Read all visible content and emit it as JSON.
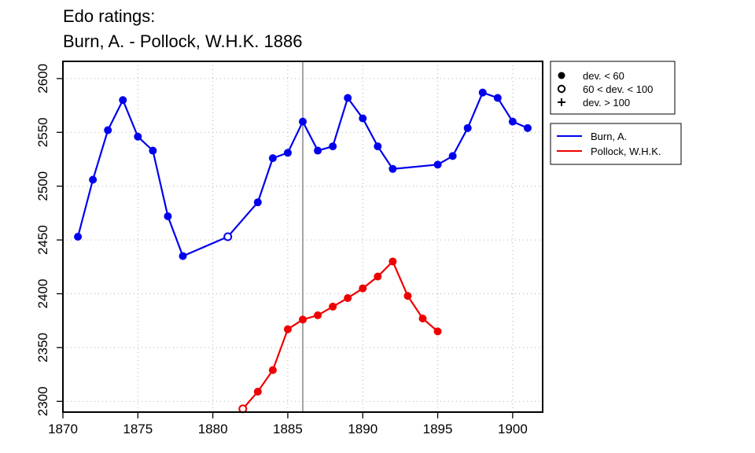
{
  "chart_data": {
    "type": "line",
    "title_lines": [
      "Edo ratings:",
      "Burn, A. - Pollock, W.H.K. 1886"
    ],
    "xlabel": "",
    "ylabel": "",
    "xlim": [
      1870,
      1902
    ],
    "ylim": [
      2290,
      2616
    ],
    "x_ticks": [
      1870,
      1875,
      1880,
      1885,
      1890,
      1895,
      1900
    ],
    "y_ticks": [
      2300,
      2350,
      2400,
      2450,
      2500,
      2550,
      2600
    ],
    "grid": true,
    "vline_x": 1886,
    "legend_markers": [
      {
        "marker": "filled",
        "label": "dev. < 60"
      },
      {
        "marker": "open",
        "label": "60 < dev. < 100"
      },
      {
        "marker": "plus",
        "label": "dev. > 100"
      }
    ],
    "legend_position": "right-outside",
    "series": [
      {
        "name": "Burn, A.",
        "color": "#0000ee",
        "points": [
          {
            "x": 1871,
            "y": 2453,
            "m": "filled"
          },
          {
            "x": 1872,
            "y": 2506,
            "m": "filled"
          },
          {
            "x": 1873,
            "y": 2552,
            "m": "filled"
          },
          {
            "x": 1874,
            "y": 2580,
            "m": "filled"
          },
          {
            "x": 1875,
            "y": 2546,
            "m": "filled"
          },
          {
            "x": 1876,
            "y": 2533,
            "m": "filled"
          },
          {
            "x": 1877,
            "y": 2472,
            "m": "filled"
          },
          {
            "x": 1878,
            "y": 2435,
            "m": "filled"
          },
          {
            "x": 1881,
            "y": 2453,
            "m": "open"
          },
          {
            "x": 1883,
            "y": 2485,
            "m": "filled"
          },
          {
            "x": 1884,
            "y": 2526,
            "m": "filled"
          },
          {
            "x": 1885,
            "y": 2531,
            "m": "filled"
          },
          {
            "x": 1886,
            "y": 2560,
            "m": "filled"
          },
          {
            "x": 1887,
            "y": 2533,
            "m": "filled"
          },
          {
            "x": 1888,
            "y": 2537,
            "m": "filled"
          },
          {
            "x": 1889,
            "y": 2582,
            "m": "filled"
          },
          {
            "x": 1890,
            "y": 2563,
            "m": "filled"
          },
          {
            "x": 1891,
            "y": 2537,
            "m": "filled"
          },
          {
            "x": 1892,
            "y": 2516,
            "m": "filled"
          },
          {
            "x": 1895,
            "y": 2520,
            "m": "filled"
          },
          {
            "x": 1896,
            "y": 2528,
            "m": "filled"
          },
          {
            "x": 1897,
            "y": 2554,
            "m": "filled"
          },
          {
            "x": 1898,
            "y": 2587,
            "m": "filled"
          },
          {
            "x": 1899,
            "y": 2582,
            "m": "filled"
          },
          {
            "x": 1900,
            "y": 2560,
            "m": "filled"
          },
          {
            "x": 1901,
            "y": 2554,
            "m": "filled"
          }
        ]
      },
      {
        "name": "Pollock, W.H.K.",
        "color": "#ee0000",
        "points": [
          {
            "x": 1882,
            "y": 2293,
            "m": "open"
          },
          {
            "x": 1883,
            "y": 2309,
            "m": "filled"
          },
          {
            "x": 1884,
            "y": 2329,
            "m": "filled"
          },
          {
            "x": 1885,
            "y": 2367,
            "m": "filled"
          },
          {
            "x": 1886,
            "y": 2376,
            "m": "filled"
          },
          {
            "x": 1887,
            "y": 2380,
            "m": "filled"
          },
          {
            "x": 1888,
            "y": 2388,
            "m": "filled"
          },
          {
            "x": 1889,
            "y": 2396,
            "m": "filled"
          },
          {
            "x": 1890,
            "y": 2405,
            "m": "filled"
          },
          {
            "x": 1891,
            "y": 2416,
            "m": "filled"
          },
          {
            "x": 1892,
            "y": 2430,
            "m": "filled"
          },
          {
            "x": 1893,
            "y": 2398,
            "m": "filled"
          },
          {
            "x": 1894,
            "y": 2377,
            "m": "filled"
          },
          {
            "x": 1895,
            "y": 2365,
            "m": "filled"
          }
        ]
      }
    ]
  }
}
